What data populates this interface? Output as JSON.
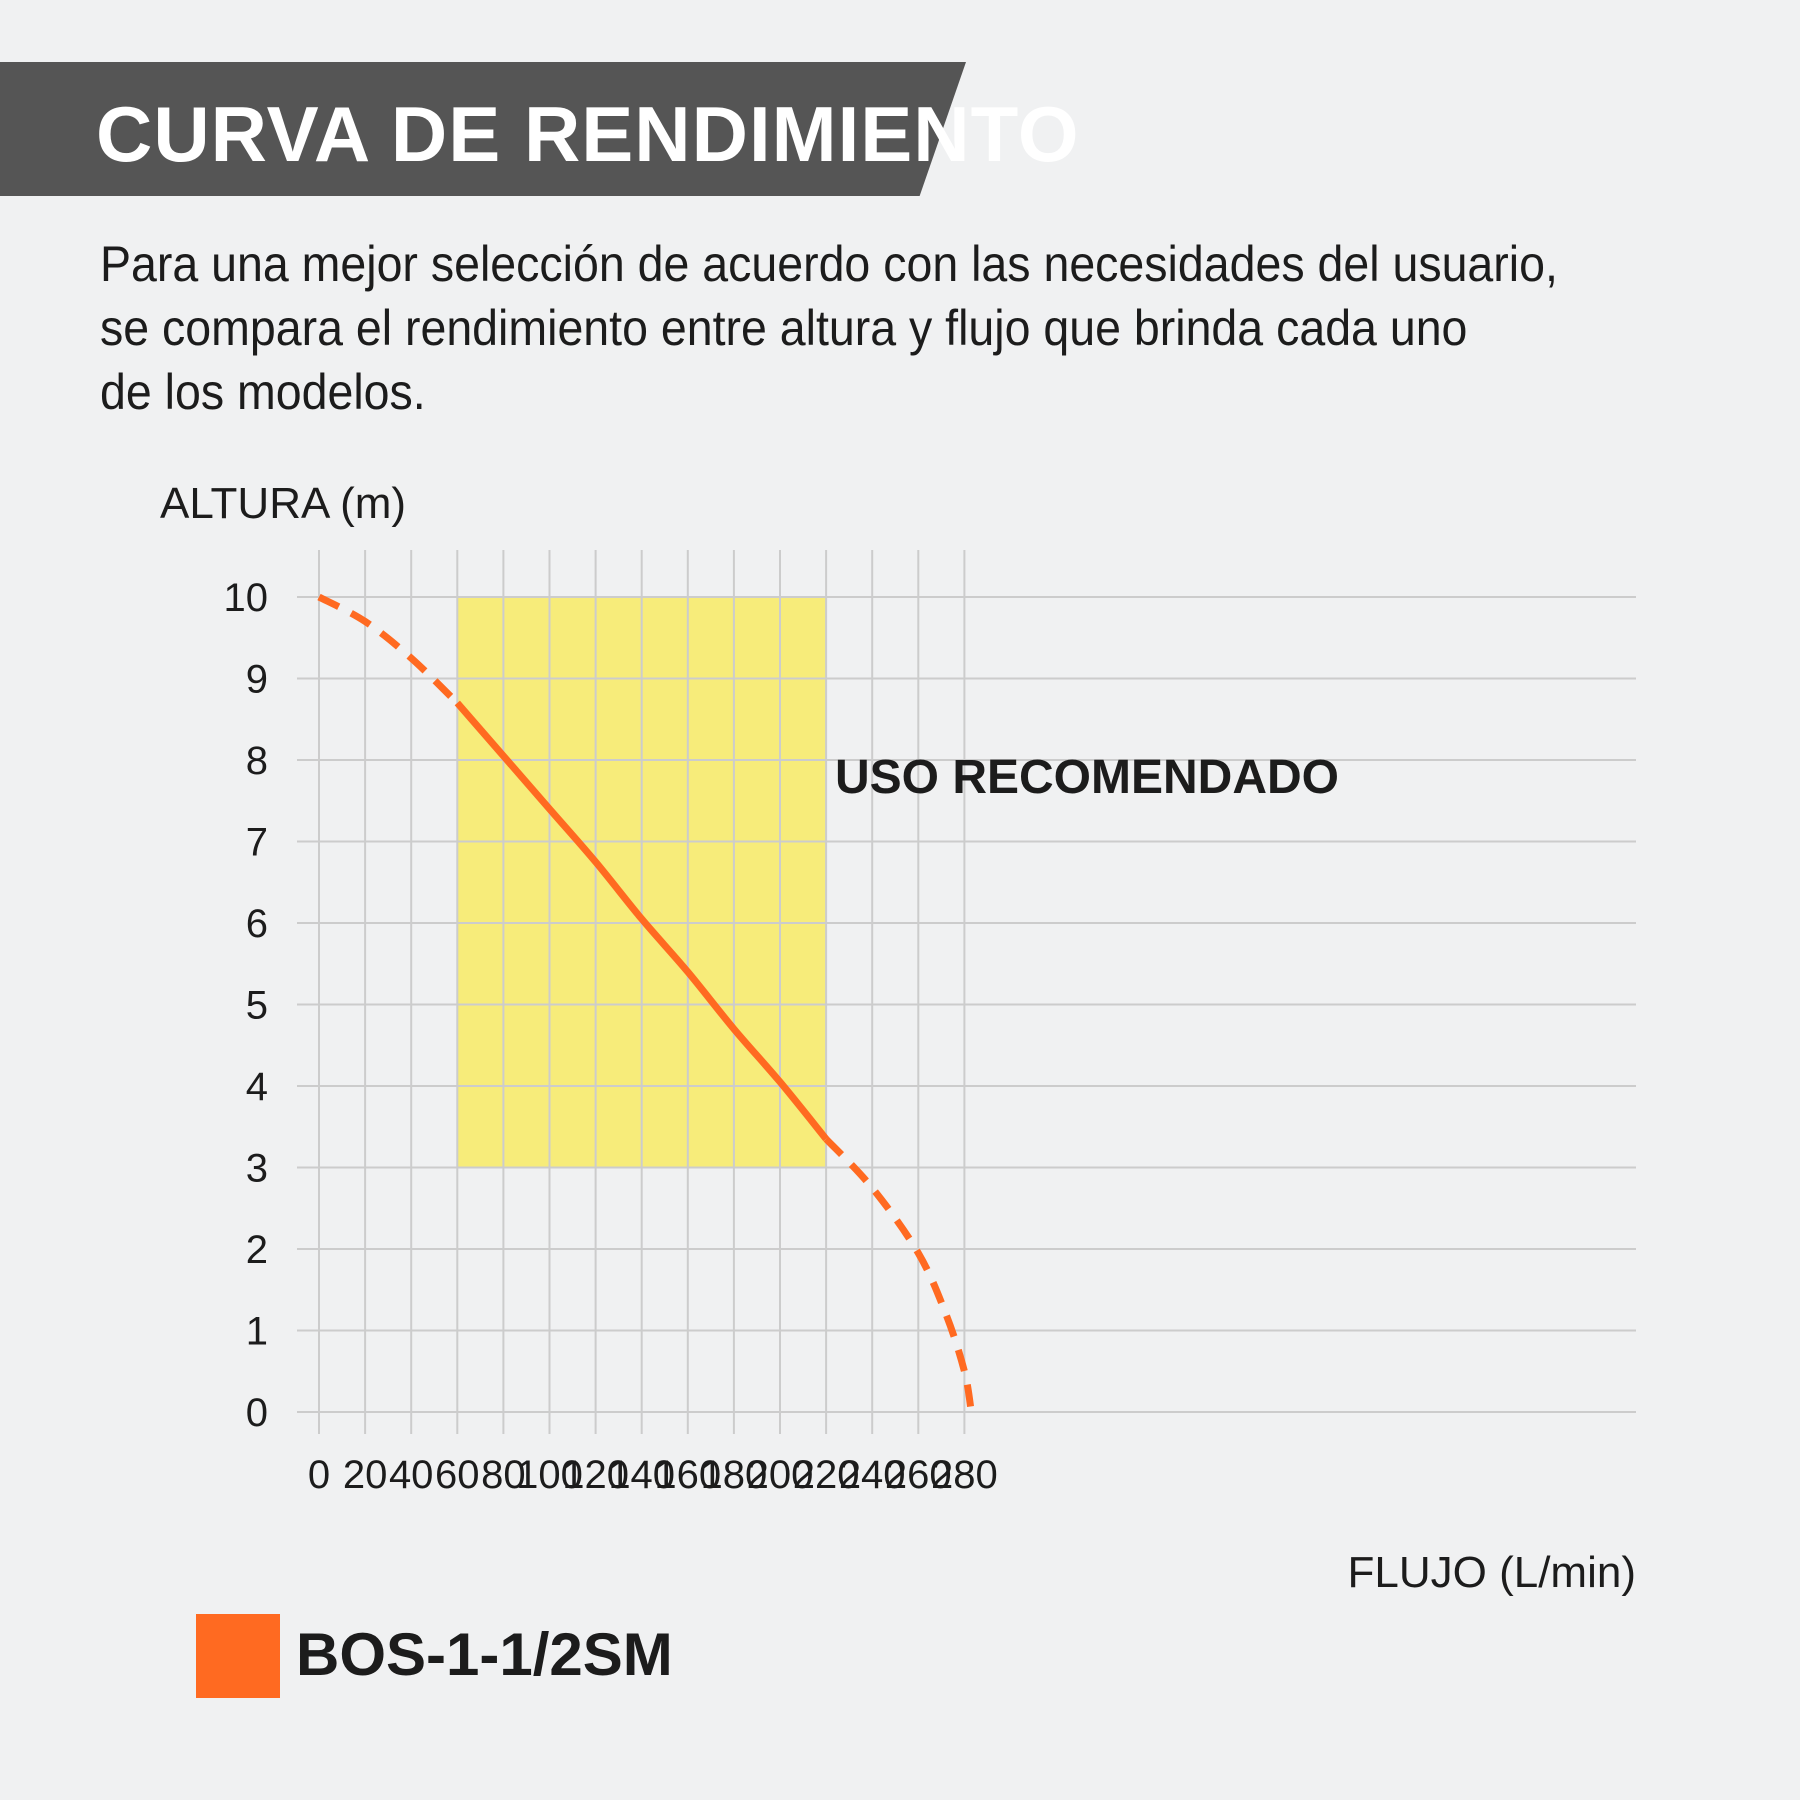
{
  "header": {
    "title": "CURVA DE RENDIMIENTO"
  },
  "description": {
    "lines": [
      "Para una mejor selección de acuerdo con las necesidades del usuario,",
      "se compara el rendimiento entre altura y flujo que brinda cada uno",
      "de los modelos."
    ]
  },
  "chart_data": {
    "type": "line",
    "title": "",
    "ylabel": "ALTURA (m)",
    "xlabel": "FLUJO (L/min)",
    "xlim": [
      0,
      285
    ],
    "ylim": [
      0,
      10
    ],
    "x_ticks": [
      0,
      20,
      40,
      60,
      80,
      100,
      120,
      140,
      160,
      180,
      200,
      220,
      240,
      260,
      280
    ],
    "y_ticks": [
      0,
      1,
      2,
      3,
      4,
      5,
      6,
      7,
      8,
      9,
      10
    ],
    "grid": true,
    "legend_placement": "bottom-left",
    "recommended_zone": {
      "label": "USO RECOMENDADO",
      "x_range": [
        60,
        220
      ],
      "y_range": [
        3,
        10
      ],
      "color": "#f7ec7a"
    },
    "series": [
      {
        "name": "BOS-1-1/2SM",
        "color": "#ff6a21",
        "points": [
          [
            0,
            10.0
          ],
          [
            20,
            9.7
          ],
          [
            40,
            9.25
          ],
          [
            60,
            8.7
          ],
          [
            80,
            8.05
          ],
          [
            100,
            7.4
          ],
          [
            120,
            6.75
          ],
          [
            140,
            6.05
          ],
          [
            160,
            5.4
          ],
          [
            180,
            4.7
          ],
          [
            200,
            4.05
          ],
          [
            220,
            3.35
          ],
          [
            240,
            2.75
          ],
          [
            260,
            1.95
          ],
          [
            272,
            1.2
          ],
          [
            280,
            0.5
          ],
          [
            283,
            0.0
          ]
        ],
        "solid_range": [
          60,
          220
        ]
      }
    ]
  }
}
